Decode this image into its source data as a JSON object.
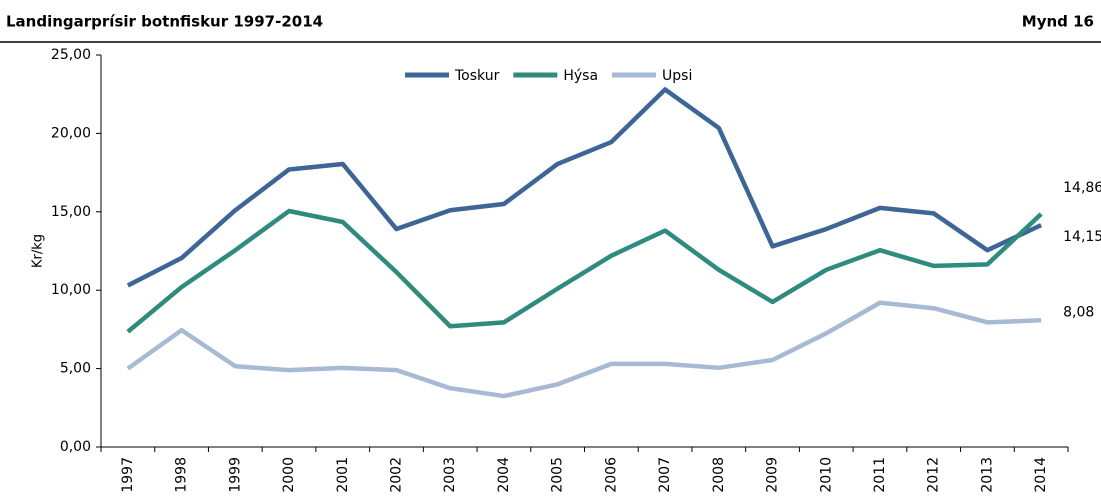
{
  "chart_data": {
    "type": "line",
    "title": "Landingarprísir botnfiskur 1997-2014",
    "figure_label": "Mynd 16",
    "y_label": "Kr/kg",
    "categories": [
      "1997",
      "1998",
      "1999",
      "2000",
      "2001",
      "2002",
      "2003",
      "2004",
      "2005",
      "2006",
      "2007",
      "2008",
      "2009",
      "2010",
      "2011",
      "2012",
      "2013",
      "2014"
    ],
    "series": [
      {
        "name": "Toskur",
        "color": "#3d6596",
        "values": [
          10.3,
          12.05,
          15.1,
          17.7,
          18.05,
          13.9,
          15.1,
          15.5,
          18.05,
          19.45,
          22.8,
          20.35,
          12.8,
          13.9,
          15.25,
          14.9,
          12.55,
          14.15
        ],
        "value_labels": [
          null,
          null,
          null,
          null,
          null,
          null,
          null,
          null,
          null,
          null,
          null,
          null,
          null,
          null,
          null,
          null,
          null,
          "14,15"
        ]
      },
      {
        "name": "Hýsa",
        "color": "#2e8b7d",
        "values": [
          7.35,
          10.2,
          12.55,
          15.05,
          14.35,
          11.15,
          7.7,
          7.95,
          10.1,
          12.2,
          13.8,
          11.3,
          9.25,
          11.3,
          12.55,
          11.55,
          11.65,
          14.86
        ],
        "value_labels": [
          null,
          null,
          null,
          null,
          null,
          null,
          null,
          null,
          null,
          null,
          null,
          null,
          null,
          null,
          null,
          null,
          null,
          "14,86"
        ]
      },
      {
        "name": "Upsi",
        "color": "#a7b9d4",
        "values": [
          5.0,
          7.45,
          5.15,
          4.9,
          5.05,
          4.9,
          3.75,
          3.25,
          4.0,
          5.3,
          5.3,
          5.05,
          5.55,
          7.25,
          9.2,
          8.85,
          7.95,
          8.08
        ],
        "value_labels": [
          null,
          null,
          null,
          null,
          null,
          null,
          null,
          null,
          null,
          null,
          null,
          null,
          null,
          null,
          null,
          null,
          null,
          "8,08"
        ]
      }
    ],
    "ylim": [
      0,
      25
    ],
    "yticks": [
      {
        "value": 0,
        "label": "0,00"
      },
      {
        "value": 5,
        "label": "5,00"
      },
      {
        "value": 10,
        "label": "10,00"
      },
      {
        "value": 15,
        "label": "15,00"
      },
      {
        "value": 20,
        "label": "20,00"
      },
      {
        "value": 25,
        "label": "25,00"
      }
    ],
    "legend": "top"
  }
}
